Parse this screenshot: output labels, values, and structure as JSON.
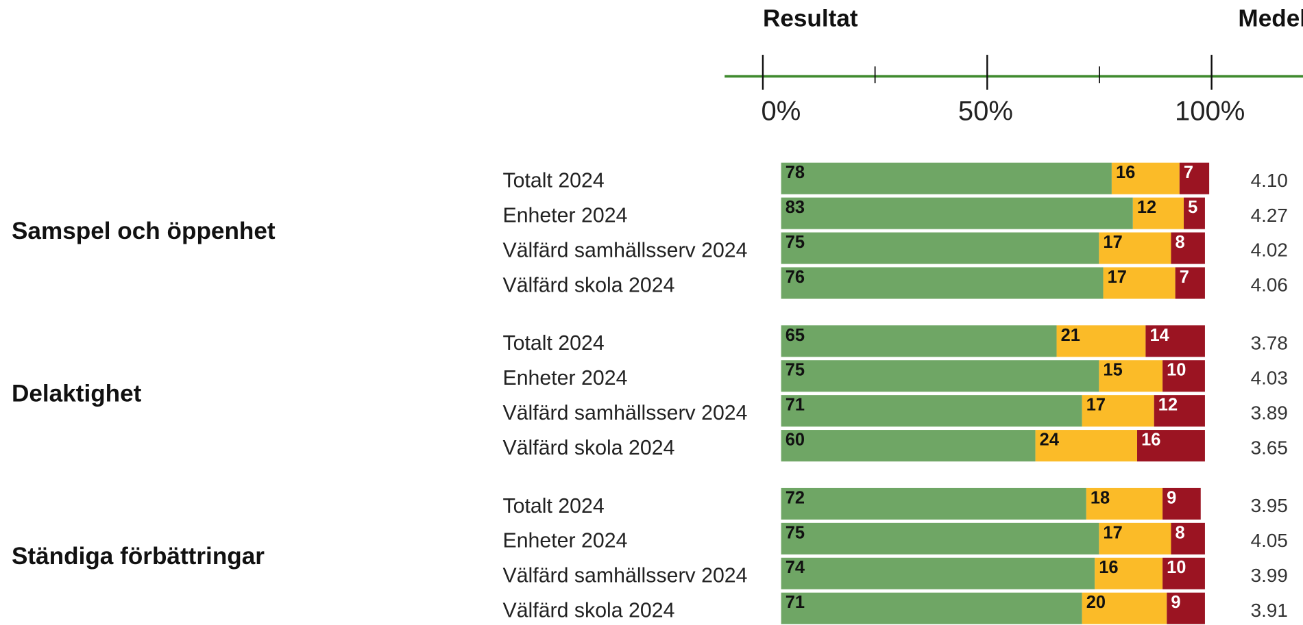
{
  "chart_data": {
    "type": "stacked-bar",
    "axis_title": "Resultat",
    "mean_title": "Medel",
    "xlim": [
      0,
      100
    ],
    "xticks": [
      {
        "value": 0,
        "label": "0%"
      },
      {
        "value": 50,
        "label": "50%"
      },
      {
        "value": 100,
        "label": "100%"
      }
    ],
    "xminor_ticks": [
      25,
      75
    ],
    "colors": [
      "#6fa665",
      "#fbbb28",
      "#9b1422"
    ],
    "groups": [
      {
        "name": "Samspel och öppenhet",
        "rows": [
          {
            "label": "Totalt 2024",
            "values": [
              78,
              16,
              7
            ],
            "mean": "4.10"
          },
          {
            "label": "Enheter 2024",
            "values": [
              83,
              12,
              5
            ],
            "mean": "4.27"
          },
          {
            "label": "Välfärd samhällsserv 2024",
            "values": [
              75,
              17,
              8
            ],
            "mean": "4.02"
          },
          {
            "label": "Välfärd skola 2024",
            "values": [
              76,
              17,
              7
            ],
            "mean": "4.06"
          }
        ]
      },
      {
        "name": "Delaktighet",
        "rows": [
          {
            "label": "Totalt 2024",
            "values": [
              65,
              21,
              14
            ],
            "mean": "3.78"
          },
          {
            "label": "Enheter 2024",
            "values": [
              75,
              15,
              10
            ],
            "mean": "4.03"
          },
          {
            "label": "Välfärd samhällsserv 2024",
            "values": [
              71,
              17,
              12
            ],
            "mean": "3.89"
          },
          {
            "label": "Välfärd skola 2024",
            "values": [
              60,
              24,
              16
            ],
            "mean": "3.65"
          }
        ]
      },
      {
        "name": "Ständiga förbättringar",
        "rows": [
          {
            "label": "Totalt 2024",
            "values": [
              72,
              18,
              9
            ],
            "mean": "3.95"
          },
          {
            "label": "Enheter 2024",
            "values": [
              75,
              17,
              8
            ],
            "mean": "4.05"
          },
          {
            "label": "Välfärd samhällsserv 2024",
            "values": [
              74,
              16,
              10
            ],
            "mean": "3.99"
          },
          {
            "label": "Välfärd skola 2024",
            "values": [
              71,
              20,
              9
            ],
            "mean": "3.91"
          }
        ]
      }
    ]
  }
}
